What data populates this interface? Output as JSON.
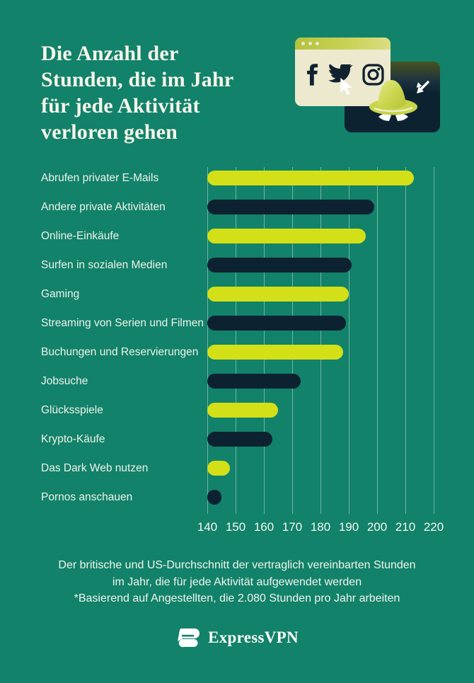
{
  "header": {
    "title_full": "Die Anzahl der Stunden, die im Jahr für jede Aktivität verloren gehen",
    "title_lines": [
      "Die Anzahl der",
      "Stunden, die im Jahr",
      "für jede Aktivität",
      "verloren gehen"
    ]
  },
  "illustration": {
    "icons": [
      "facebook-icon",
      "twitter-icon",
      "instagram-icon",
      "cursor-arrow-icon",
      "spy-hat-icon",
      "spy-eyes-icon"
    ],
    "window_color": "#ECE9CF",
    "card_color": "#0D2231"
  },
  "chart_data": {
    "type": "bar",
    "orientation": "horizontal",
    "title": "Die Anzahl der Stunden, die im Jahr für jede Aktivität verloren gehen",
    "categories": [
      "Abrufen privater E-Mails",
      "Andere private Aktivitäten",
      "Online-Einkäufe",
      "Surfen in sozialen Medien",
      "Gaming",
      "Streaming von Serien und Filmen",
      "Buchungen und Reservierungen",
      "Jobsuche",
      "Glücksspiele",
      "Krypto-Käufe",
      "Das Dark Web nutzen",
      "Pornos anschauen"
    ],
    "values": [
      213,
      199,
      196,
      191,
      190,
      189,
      188,
      173,
      165,
      163,
      148,
      145
    ],
    "unit": "Stunden pro Jahr",
    "xlim": [
      140,
      220
    ],
    "xticks": [
      140,
      150,
      160,
      170,
      180,
      190,
      200,
      210,
      220
    ],
    "grid": "vertical",
    "legend": "none",
    "bar_colors_alternating": [
      "#D3E018",
      "#0D2231"
    ]
  },
  "footer": {
    "caption_lines": [
      "Der britische und US-Durchschnitt der vertraglich vereinbarten Stunden",
      "im Jahr, die für jede Aktivität aufgewendet werden",
      "*Basierend auf Angestellten, die 2.080 Stunden pro Jahr arbeiten"
    ],
    "brand": "ExpressVPN"
  },
  "colors": {
    "background": "#12826A",
    "bar_yellow": "#D3E018",
    "bar_navy": "#0D2231",
    "text": "#F2F4EC",
    "cream": "#ECE9CF",
    "titlebar_olive": "#C9D255",
    "hat_green": "#C9D44B"
  }
}
